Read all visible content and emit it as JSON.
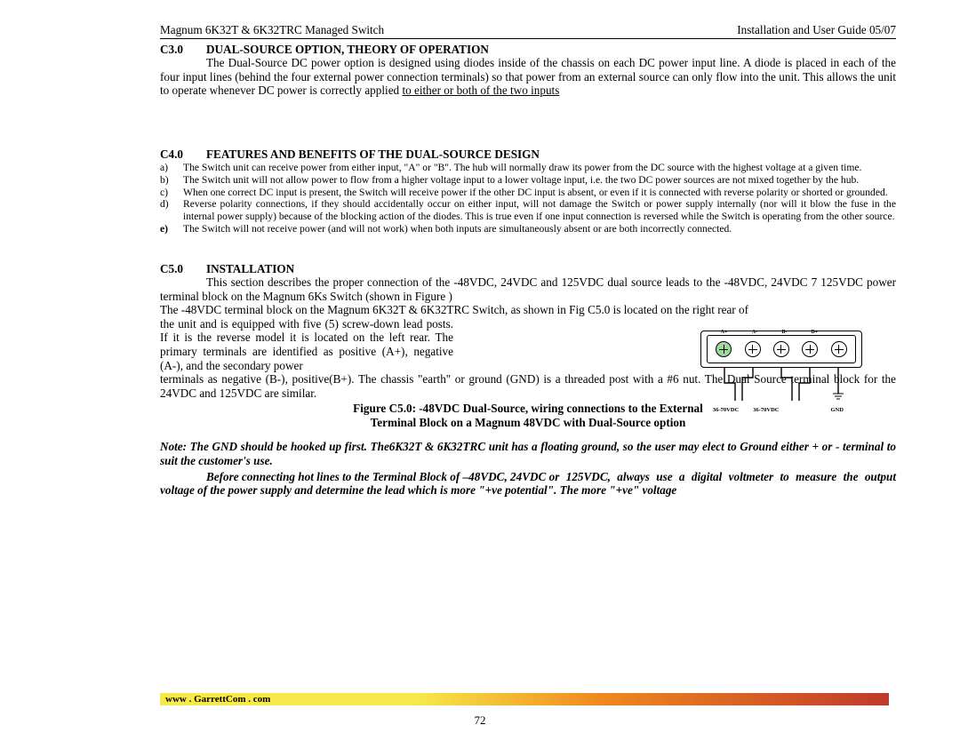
{
  "header": {
    "left": "Magnum 6K32T & 6K32TRC Managed Switch",
    "right": "Installation and User Guide 05/07"
  },
  "c3": {
    "num": "C3.0",
    "title": "DUAL-SOURCE OPTION, THEORY OF OPERATION",
    "lead": "The Dual-Source DC power option is designed using diodes inside of the",
    "body": "chassis on each DC power input line. A diode is placed in each of the four input lines (behind the four external power connection terminals) so that power from an external source can only flow into the unit.  This allows the unit to operate whenever DC power is correctly applied ",
    "underlined": "to either or both of the two inputs"
  },
  "c4": {
    "num": "C4.0",
    "title": "FEATURES AND BENEFITS OF THE DUAL-SOURCE DESIGN",
    "items": [
      {
        "k": "a)",
        "t": "The Switch unit can receive power from either input, \"A\" or \"B\".  The hub will normally draw its power from the DC source with the highest voltage at a given time."
      },
      {
        "k": "b)",
        "t": "The Switch unit will not allow power to flow from a higher voltage input to a lower voltage input, i.e. the two DC power sources are not mixed together by the hub."
      },
      {
        "k": "c)",
        "t": "When one correct DC input is present, the Switch will receive power if the other DC input is absent, or even if it is connected with reverse polarity or shorted or grounded."
      },
      {
        "k": "d)",
        "t": "Reverse polarity connections, if they should accidentally occur on either input, will not damage the Switch or power supply internally (nor will it blow the fuse in the internal power supply) because of the blocking action of the diodes.  This is true even if one input connection is reversed while the Switch is operating from the other source."
      },
      {
        "k": "e)",
        "t": "The Switch will not receive power (and will not work) when both inputs are simultaneously absent or are both incorrectly connected.",
        "bold": true
      }
    ]
  },
  "c5": {
    "num": "C5.0",
    "title": "INSTALLATION",
    "lead": "This section describes the proper connection of the -48VDC, 24VDC and",
    "p1": "125VDC dual source leads to the -48VDC, 24VDC 7 125VDC power terminal block on the Magnum 6Ks Switch (shown in Figure )",
    "p2a": "The -48VDC terminal block on the Magnum 6K32T & 6K32TRC Switch, as shown in Fig C5.0 is located on the right rear of",
    "narrow": "the unit and is equipped with five (5) screw-down lead posts.  If it is the reverse model it is located on the left rear.  The primary terminals are identified as positive (A+), negative (A-), and the secondary power",
    "p3": "terminals as negative (B-), positive(B+).  The chassis \"earth\" or ground (GND) is a threaded post with a #6 nut.  The Dual Source terminal block for the 24VDC and 125VDC are similar."
  },
  "figure": {
    "term_labels": [
      "A+",
      "A-",
      "B-",
      "B+"
    ],
    "wire_labels": [
      "36-70VDC",
      "36-70VDC",
      "GND"
    ],
    "caption1": "Figure C5.0:  -48VDC Dual-Source, wiring connections to the External",
    "caption2": "Terminal Block on a Magnum 48VDC with Dual-Source option"
  },
  "notes": {
    "n1": "Note: The GND should be hooked up first. The6K32T & 6K32TRC unit has a floating ground, so the user may elect to Ground either + or - terminal to suit the customer's use.",
    "n2_indent": "Before connecting hot lines to the Terminal Block of –48VDC, 24VDC or",
    "n2_rest": "125VDC,  always use a digital voltmeter to measure the output voltage of the power supply and determine the lead which is  more  \"+ve potential\". The more \"+ve\" voltage"
  },
  "footer": {
    "url": "www . GarrettCom . com",
    "page": "72"
  }
}
